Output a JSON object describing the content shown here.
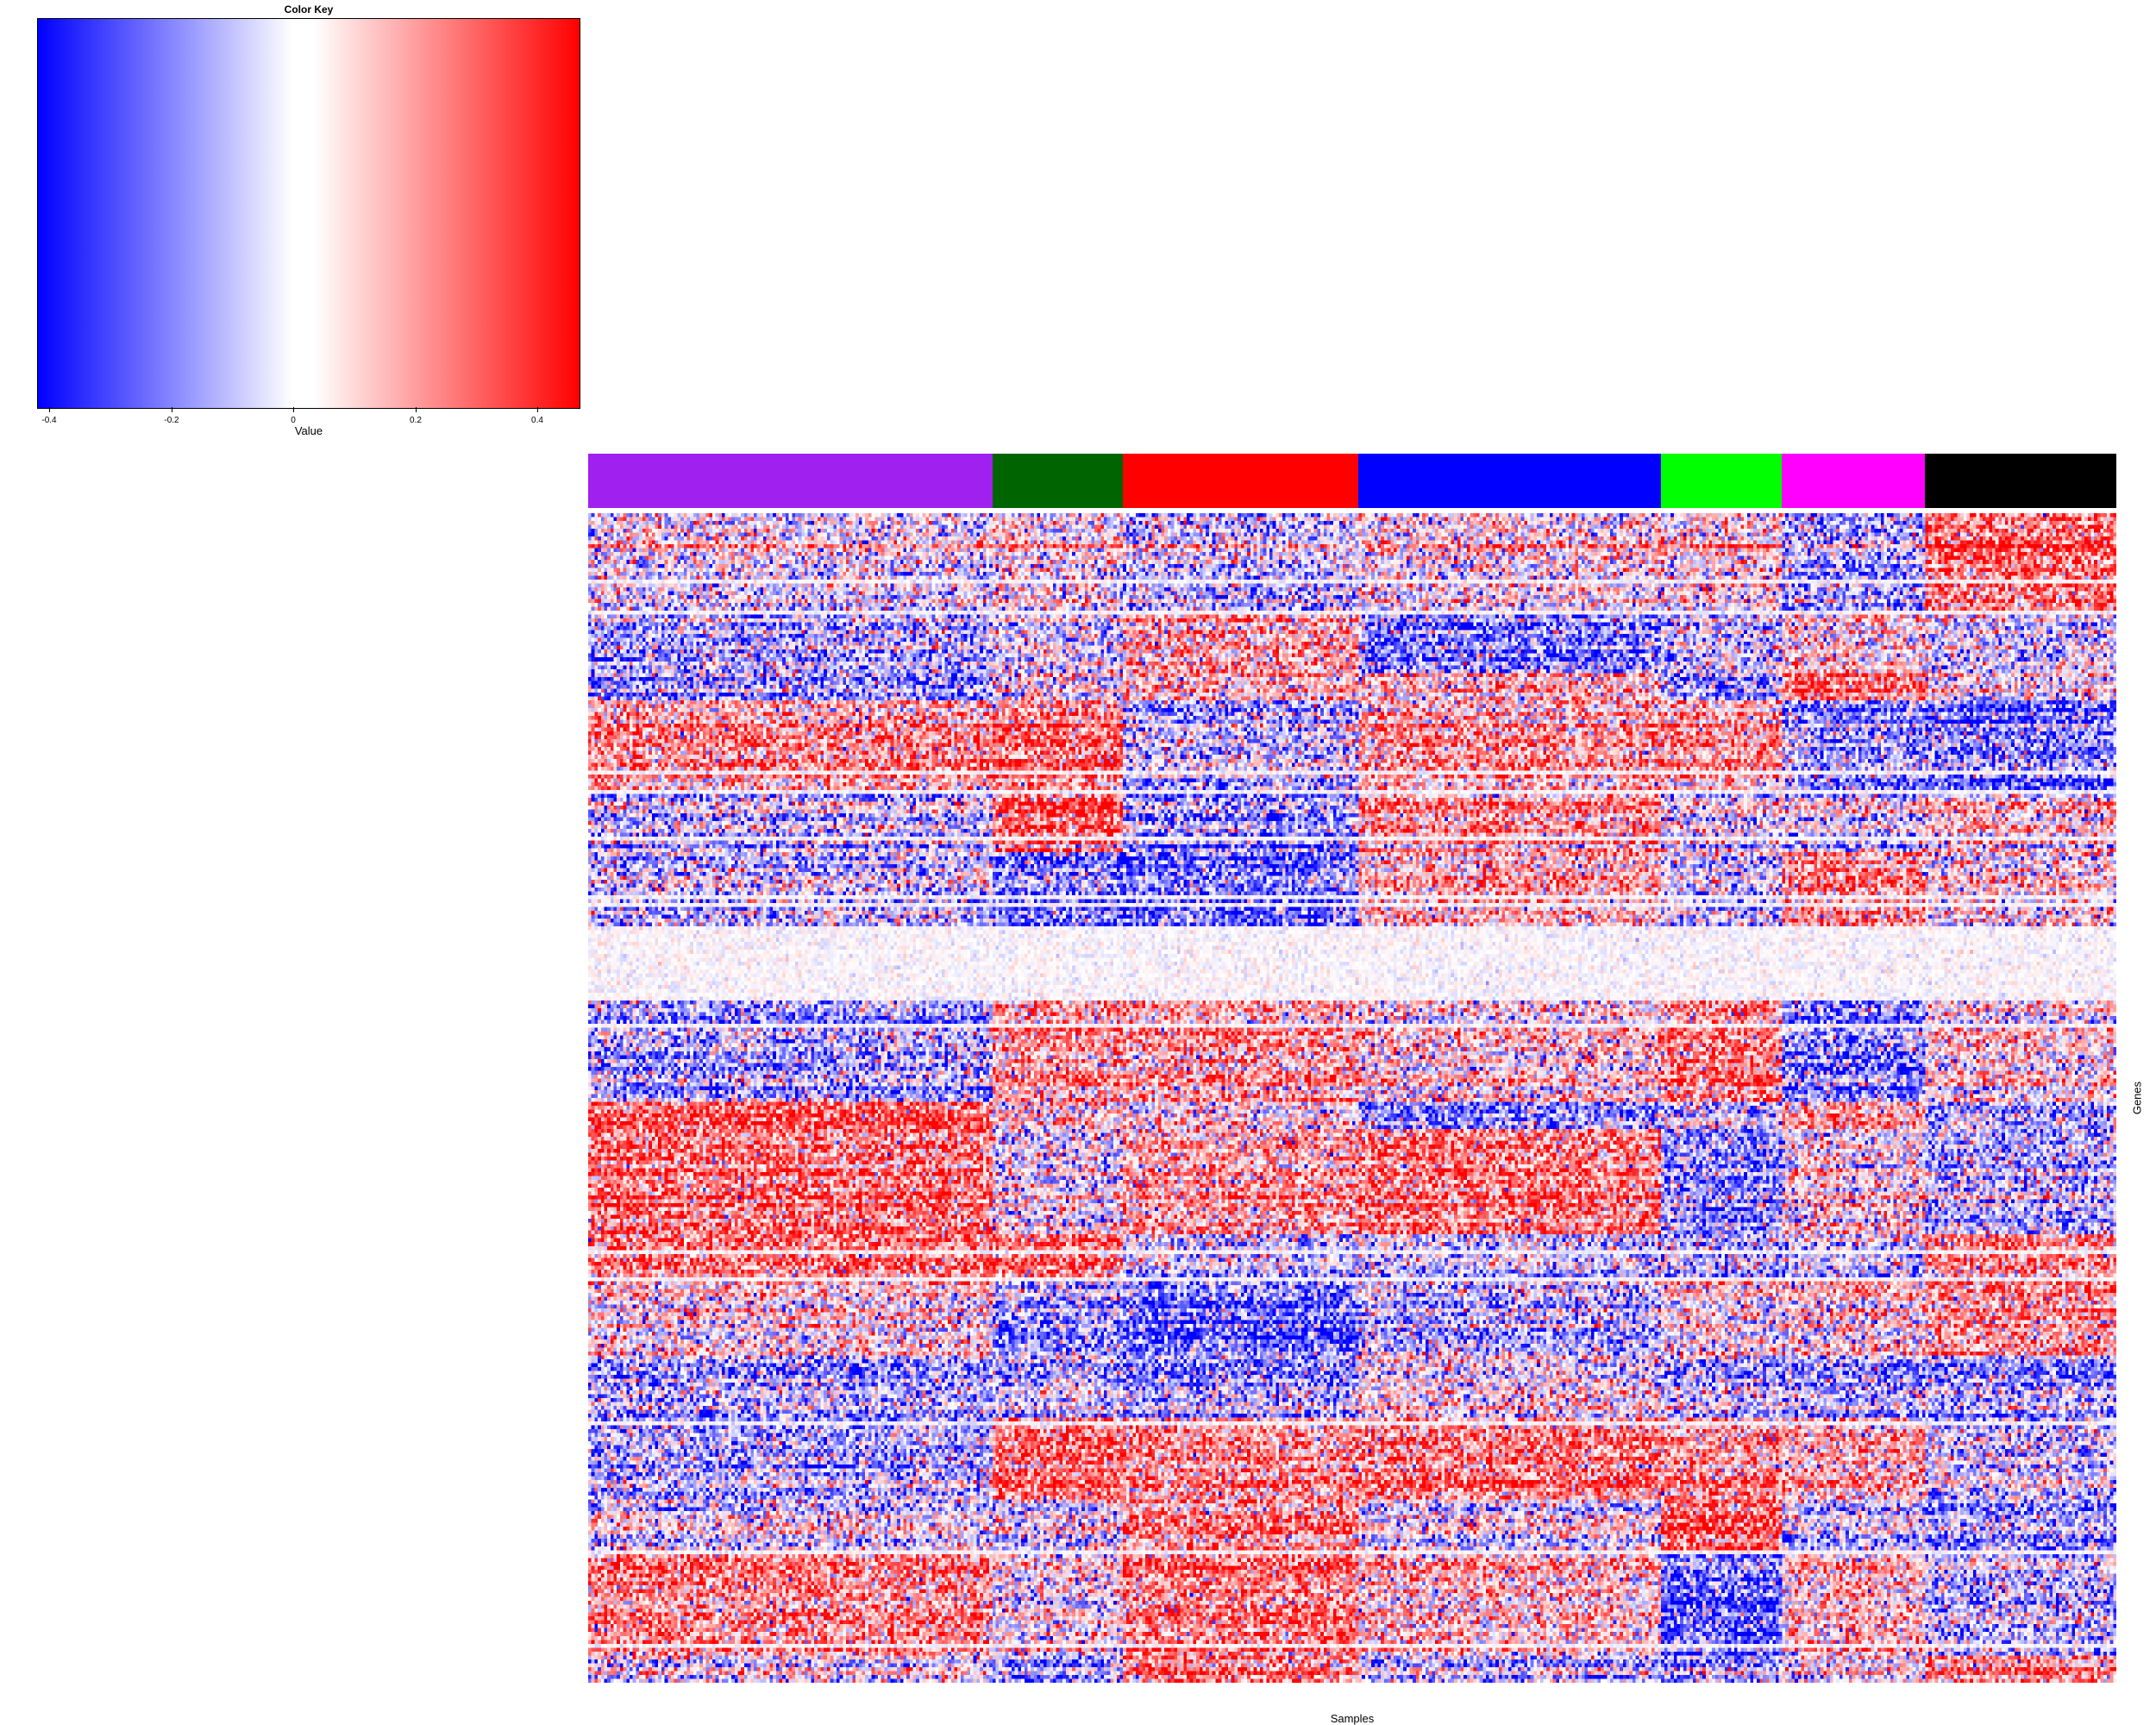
{
  "color_key": {
    "title": "Color Key",
    "xlabel": "Value",
    "range": [
      -0.42,
      0.47
    ],
    "ticks": [
      {
        "value": -0.4,
        "label": "-0.4"
      },
      {
        "value": -0.2,
        "label": "-0.2"
      },
      {
        "value": 0,
        "label": "0"
      },
      {
        "value": 0.2,
        "label": "0.2"
      },
      {
        "value": 0.4,
        "label": "0.4"
      }
    ],
    "low_color": "#0000ff",
    "mid_color": "#ffffff",
    "high_color": "#ff0000"
  },
  "chart_data": {
    "type": "heatmap",
    "xlabel": "Samples",
    "ylabel": "Genes",
    "value_range": [
      -0.42,
      0.47
    ],
    "colormap": [
      "#0000ff",
      "#ffffff",
      "#ff0000"
    ],
    "n_samples": 480,
    "n_genes": 300,
    "sample_groups": [
      {
        "color": "#a020f0",
        "n_samples": 127
      },
      {
        "color": "#006400",
        "n_samples": 41
      },
      {
        "color": "#ff0000",
        "n_samples": 74
      },
      {
        "color": "#0000ff",
        "n_samples": 95
      },
      {
        "color": "#00ff00",
        "n_samples": 38
      },
      {
        "color": "#ff00ff",
        "n_samples": 45
      },
      {
        "color": "#000000",
        "n_samples": 60
      }
    ]
  }
}
